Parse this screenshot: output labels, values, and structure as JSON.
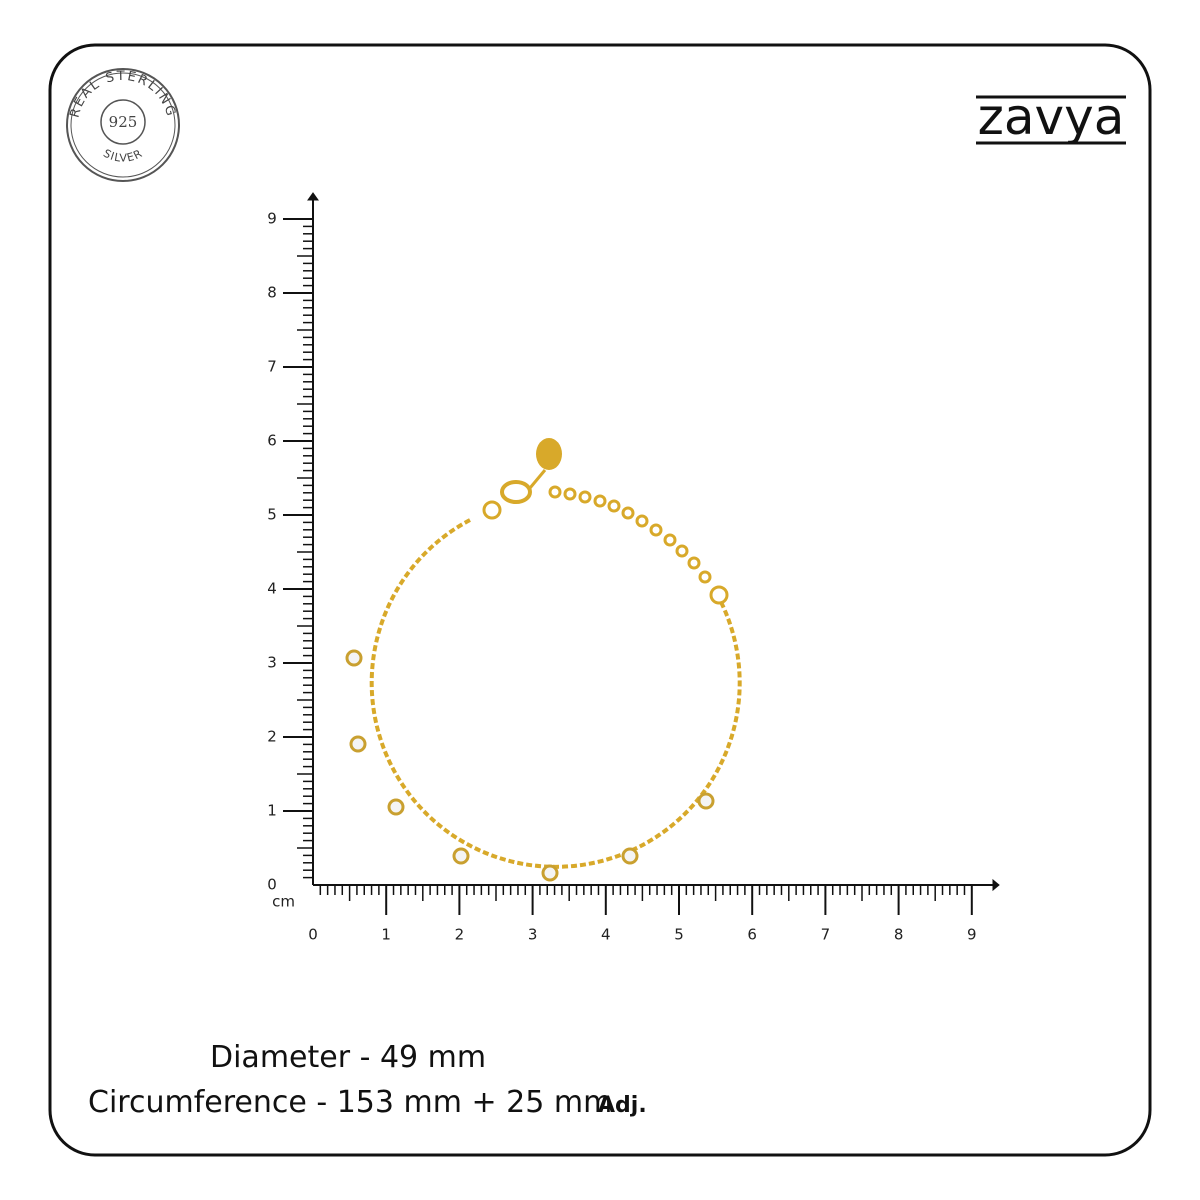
{
  "badge": {
    "top_text": "REAL STERLING",
    "center_text": "925",
    "bottom_text": "SILVER"
  },
  "brand": "zavya",
  "ruler": {
    "unit": "cm",
    "x_labels": [
      0,
      1,
      2,
      3,
      4,
      5,
      6,
      7,
      8,
      9
    ],
    "y_labels": [
      0,
      1,
      2,
      3,
      4,
      5,
      6,
      7,
      8,
      9
    ]
  },
  "specs": {
    "diameter": "Diameter -  49 mm",
    "circumference": "Circumference - 153 mm + 25 mm",
    "adjustable": "Adj."
  }
}
